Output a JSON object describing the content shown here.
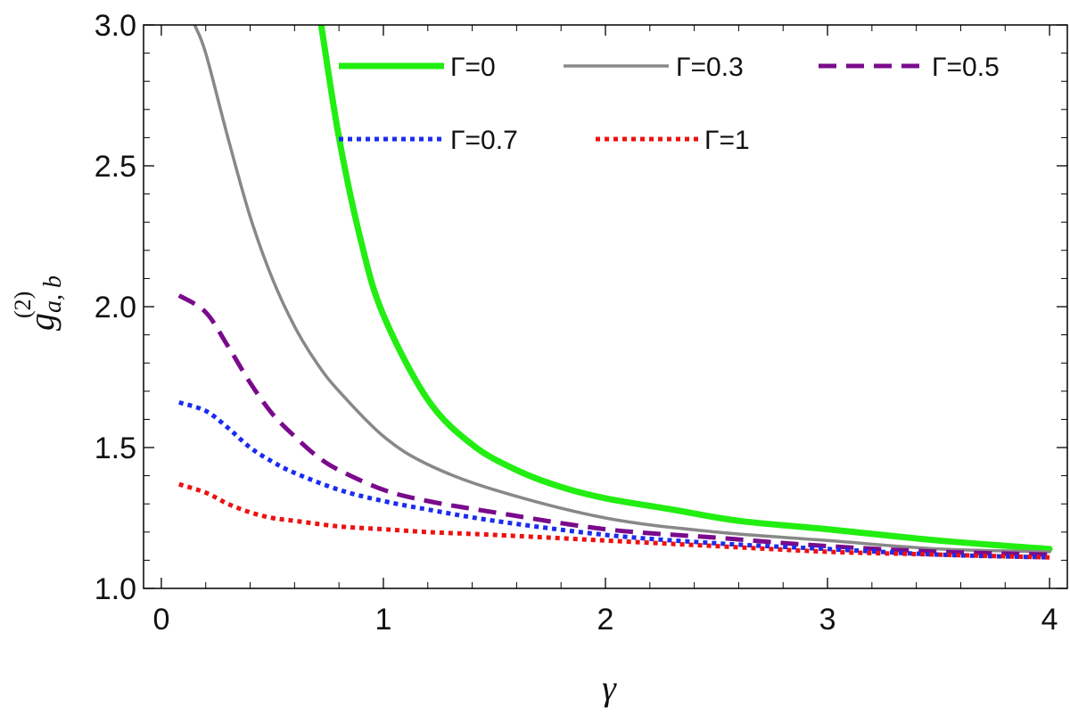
{
  "chart_data": {
    "type": "line",
    "xlabel": "γ",
    "ylabel_main": "g",
    "ylabel_sup": "(2)",
    "ylabel_sub": "a, b",
    "xlim": [
      -0.08,
      4.08
    ],
    "ylim": [
      1.0,
      3.0
    ],
    "x_ticks": [
      0,
      1,
      2,
      3,
      4
    ],
    "x_tick_labels": [
      "0",
      "1",
      "2",
      "3",
      "4"
    ],
    "y_ticks": [
      1.0,
      1.5,
      2.0,
      2.5,
      3.0
    ],
    "y_tick_labels": [
      "1.0",
      "1.5",
      "2.0",
      "2.5",
      "3.0"
    ],
    "grid": false,
    "legend_position": "top-right",
    "series": [
      {
        "name": "Γ=0",
        "color": "#22ee11",
        "style": "solid",
        "x": [
          0.72,
          0.8,
          0.9,
          1.0,
          1.2,
          1.4,
          1.6,
          1.8,
          2.0,
          2.3,
          2.6,
          3.0,
          3.5,
          4.0
        ],
        "y": [
          3.0,
          2.6,
          2.23,
          1.97,
          1.67,
          1.51,
          1.42,
          1.36,
          1.32,
          1.28,
          1.24,
          1.21,
          1.17,
          1.14
        ]
      },
      {
        "name": "Γ=0.3",
        "color": "#888888",
        "style": "solid",
        "x": [
          0.15,
          0.2,
          0.3,
          0.4,
          0.5,
          0.6,
          0.7,
          0.8,
          1.0,
          1.2,
          1.5,
          2.0,
          2.5,
          3.0,
          3.5,
          4.0
        ],
        "y": [
          3.0,
          2.9,
          2.6,
          2.32,
          2.1,
          1.93,
          1.8,
          1.7,
          1.54,
          1.44,
          1.35,
          1.25,
          1.2,
          1.17,
          1.14,
          1.13
        ]
      },
      {
        "name": "Γ=0.5",
        "color": "#7a0a8c",
        "style": "dashed",
        "x": [
          0.08,
          0.2,
          0.3,
          0.4,
          0.5,
          0.6,
          0.7,
          0.8,
          1.0,
          1.2,
          1.5,
          2.0,
          2.5,
          3.0,
          3.5,
          4.0
        ],
        "y": [
          2.04,
          1.98,
          1.86,
          1.73,
          1.62,
          1.54,
          1.47,
          1.42,
          1.35,
          1.31,
          1.27,
          1.21,
          1.18,
          1.15,
          1.13,
          1.12
        ]
      },
      {
        "name": "Γ=0.7",
        "color": "#1a2cf0",
        "style": "dotted",
        "x": [
          0.08,
          0.2,
          0.3,
          0.4,
          0.5,
          0.6,
          0.8,
          1.0,
          1.2,
          1.5,
          2.0,
          2.5,
          3.0,
          3.5,
          4.0
        ],
        "y": [
          1.66,
          1.63,
          1.57,
          1.5,
          1.45,
          1.41,
          1.35,
          1.31,
          1.28,
          1.24,
          1.19,
          1.16,
          1.14,
          1.12,
          1.11
        ]
      },
      {
        "name": "Γ=1",
        "color": "#ee1111",
        "style": "dotted",
        "x": [
          0.08,
          0.2,
          0.3,
          0.4,
          0.5,
          0.6,
          0.8,
          1.0,
          1.2,
          1.5,
          2.0,
          2.5,
          3.0,
          3.5,
          4.0
        ],
        "y": [
          1.37,
          1.34,
          1.3,
          1.27,
          1.25,
          1.24,
          1.22,
          1.21,
          1.2,
          1.19,
          1.17,
          1.15,
          1.13,
          1.12,
          1.11
        ]
      }
    ]
  }
}
